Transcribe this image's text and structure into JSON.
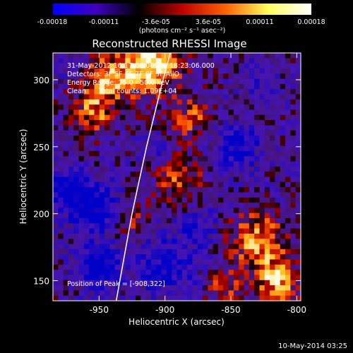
{
  "colorbar": {
    "tick_labels": [
      "-0.00018",
      "-0.00011",
      "-3.6e-05",
      "3.6e-05",
      "0.00011",
      "0.00018"
    ],
    "tick_values": [
      -0.00018,
      -0.00011,
      -3.6e-05,
      3.6e-05,
      0.00011,
      0.00018
    ],
    "units": "(photons cm⁻² s⁻¹ asec⁻²)",
    "range": [
      -0.00018,
      0.00018
    ],
    "colors": [
      "#0000ff",
      "#4000c0",
      "#000000",
      "#c00000",
      "#ff6000",
      "#ffff60",
      "#ffffff"
    ]
  },
  "chart_data": {
    "type": "heatmap",
    "title": "Reconstructed RHESSI Image",
    "xlabel": "Heliocentric X (arcsec)",
    "ylabel": "Heliocentric Y (arcsec)",
    "xlim": [
      -985,
      -797
    ],
    "ylim": [
      135,
      320
    ],
    "x_ticks": [
      -950,
      -900,
      -850,
      -800
    ],
    "y_ticks": [
      150,
      200,
      250,
      300
    ],
    "x_tick_labels": [
      "-950",
      "-900",
      "-850",
      "-800"
    ],
    "y_tick_labels": [
      "150",
      "200",
      "250",
      "300"
    ],
    "limb_curve": [
      [
        -937,
        135
      ],
      [
        -925,
        200
      ],
      [
        -914,
        250
      ],
      [
        -902,
        298
      ],
      [
        -896,
        320
      ]
    ],
    "peak": [
      -908,
      322
    ]
  },
  "info": {
    "time_range": "31-May-2012 16:17:06.000 to 18:23:06.000",
    "detectors": "Detectors: 3F 5F 6F 7F 8F 9F AllO",
    "energy_range": "Energy Range: 25.0 - 50.0 keV",
    "method_counts": "Clean      Total counts: 1.09E+04",
    "peak_position": "Position of Peak = [-908,322]"
  },
  "footer": {
    "timestamp": "10-May-2014 03:25"
  }
}
